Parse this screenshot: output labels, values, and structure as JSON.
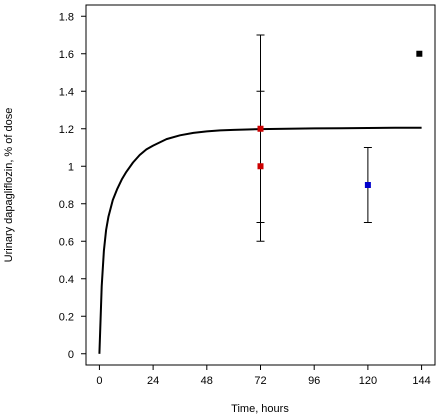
{
  "chart_data": {
    "type": "scatter",
    "xlabel": "Time, hours",
    "ylabel": "Urinary dapagliflozin, % of dose",
    "xlim": [
      -6,
      150
    ],
    "ylim": [
      -0.06,
      1.86
    ],
    "x_ticks": [
      0,
      24,
      48,
      72,
      96,
      120,
      144
    ],
    "y_ticks": [
      0,
      0.2,
      0.4,
      0.6,
      0.8,
      1,
      1.2,
      1.4,
      1.6,
      1.8
    ],
    "x_tick_labels": [
      "0",
      "24",
      "48",
      "72",
      "96",
      "120",
      "144"
    ],
    "y_tick_labels": [
      "0",
      "0.2",
      "0.4",
      "0.6",
      "0.8",
      "1",
      "1.2",
      "1.4",
      "1.6",
      "1.8"
    ],
    "grid": false,
    "curve": {
      "x": [
        0,
        1,
        2,
        3,
        4,
        6,
        8,
        10,
        12,
        15,
        18,
        21,
        24,
        30,
        36,
        42,
        48,
        54,
        60,
        66,
        72,
        84,
        96,
        108,
        120,
        132,
        144
      ],
      "y": [
        0,
        0.36,
        0.55,
        0.66,
        0.73,
        0.82,
        0.88,
        0.93,
        0.97,
        1.02,
        1.06,
        1.09,
        1.11,
        1.145,
        1.165,
        1.178,
        1.186,
        1.191,
        1.194,
        1.196,
        1.198,
        1.2,
        1.202,
        1.203,
        1.204,
        1.205,
        1.205
      ]
    },
    "series": [
      {
        "color": "#cc0000",
        "points": [
          {
            "x": 72,
            "y": 1.2,
            "err_low": 0.7,
            "err_high": 1.7
          },
          {
            "x": 72,
            "y": 1.0,
            "err_low": 0.6,
            "err_high": 1.4
          }
        ]
      },
      {
        "color": "#0000cc",
        "points": [
          {
            "x": 120,
            "y": 0.9,
            "err_low": 0.7,
            "err_high": 1.1
          }
        ]
      },
      {
        "color": "#000000",
        "points": [
          {
            "x": 143,
            "y": 1.6,
            "err_low": null,
            "err_high": null
          }
        ]
      }
    ]
  }
}
